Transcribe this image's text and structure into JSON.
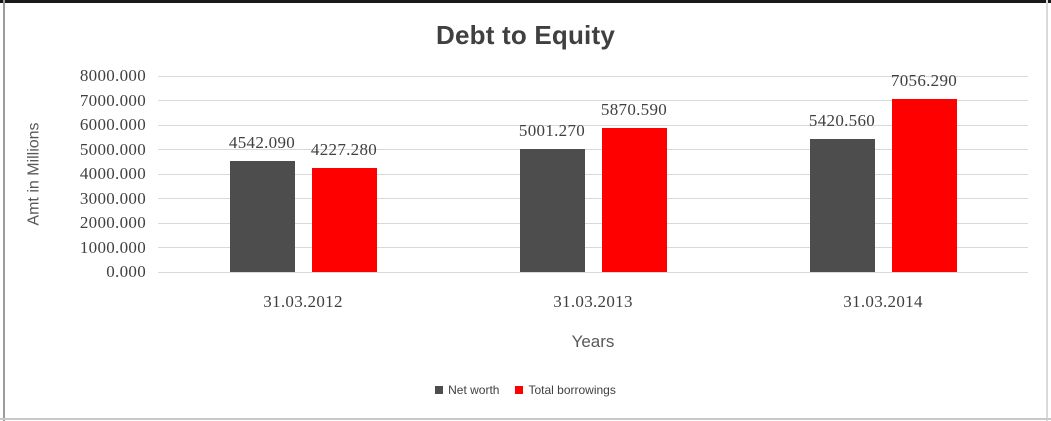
{
  "title": "Debt to Equity",
  "axes": {
    "y_title": "Amt in Millions",
    "x_title": "Years",
    "y_ticks": [
      "8000.000",
      "7000.000",
      "6000.000",
      "5000.000",
      "4000.000",
      "3000.000",
      "2000.000",
      "1000.000",
      "0.000"
    ]
  },
  "legend": {
    "items": [
      {
        "label": "Net worth",
        "color": "#4D4D4D"
      },
      {
        "label": "Total borrowings",
        "color": "#FF0000"
      }
    ]
  },
  "chart_data": {
    "type": "bar",
    "title": "Debt to Equity",
    "categories": [
      "31.03.2012",
      "31.03.2013",
      "31.03.2014"
    ],
    "series": [
      {
        "name": "Net worth",
        "color": "#4D4D4D",
        "values": [
          4542.09,
          5001.27,
          5420.56
        ],
        "labels": [
          "4542.090",
          "5001.270",
          "5420.560"
        ]
      },
      {
        "name": "Total borrowings",
        "color": "#FF0000",
        "values": [
          4227.28,
          5870.59,
          7056.29
        ],
        "labels": [
          "4227.280",
          "5870.590",
          "7056.290"
        ]
      }
    ],
    "xlabel": "Years",
    "ylabel": "Amt in Millions",
    "ylim": [
      0,
      8000
    ],
    "ytick_step": 1000,
    "grid": true,
    "legend_position": "bottom",
    "colors": {
      "gridline": "#D9D9D9",
      "label_text": "#404040",
      "axis_title_text": "#595959",
      "title_text": "#404040"
    }
  }
}
